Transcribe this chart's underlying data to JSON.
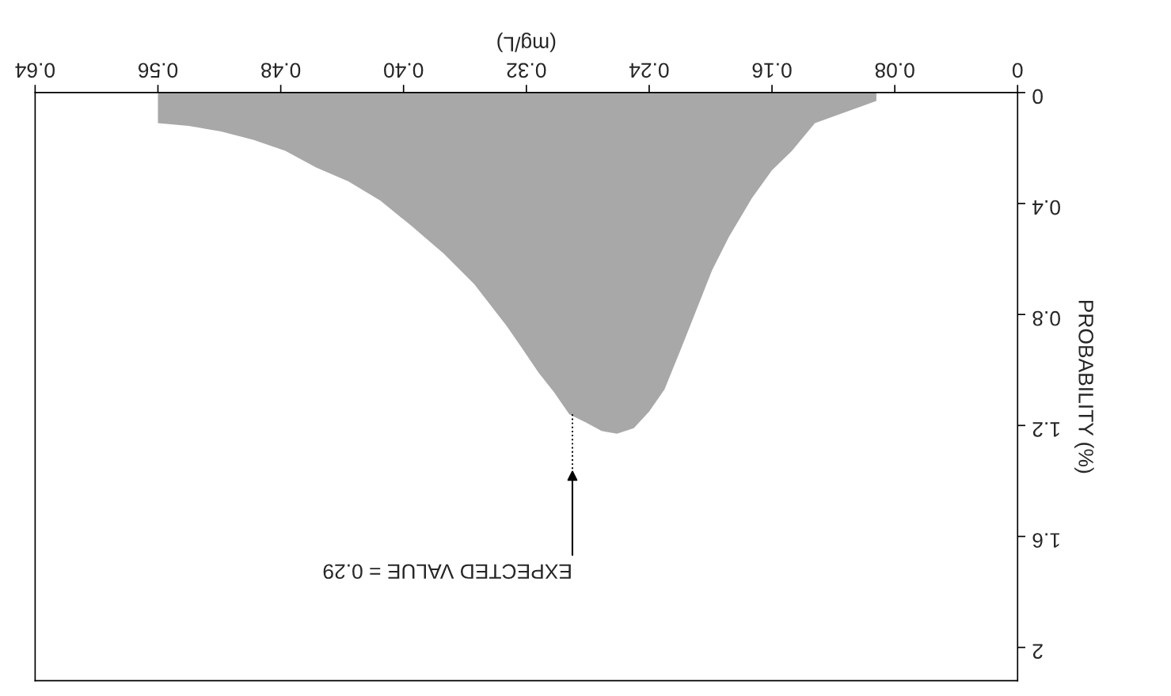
{
  "chart_data": {
    "type": "area",
    "xlabel": "(mg/L)",
    "ylabel": "PROBABILITY (%)",
    "color": "#a8a8a8",
    "x": [
      0.092,
      0.132,
      0.147,
      0.16,
      0.173,
      0.188,
      0.199,
      0.209,
      0.219,
      0.23,
      0.24,
      0.25,
      0.261,
      0.271,
      0.281,
      0.292,
      0.302,
      0.312,
      0.323,
      0.333,
      0.354,
      0.374,
      0.395,
      0.415,
      0.436,
      0.457,
      0.477,
      0.498,
      0.519,
      0.54,
      0.56
    ],
    "values": [
      0.03,
      0.11,
      0.21,
      0.28,
      0.38,
      0.52,
      0.64,
      0.78,
      0.92,
      1.07,
      1.15,
      1.21,
      1.23,
      1.22,
      1.19,
      1.16,
      1.08,
      1.01,
      0.92,
      0.84,
      0.69,
      0.58,
      0.48,
      0.39,
      0.32,
      0.27,
      0.21,
      0.17,
      0.14,
      0.12,
      0.11
    ],
    "xlim": [
      0.64,
      0
    ],
    "ylim": [
      2.12,
      0
    ],
    "xticks": [
      0,
      0.08,
      0.16,
      0.24,
      0.32,
      {
        "value": 0.4,
        "label": "0.40"
      },
      0.48,
      0.56,
      0.64
    ],
    "yticks": [
      0,
      0.4,
      0.8,
      1.2,
      1.6,
      2
    ],
    "series": [
      {
        "type": "line",
        "x": [
          0.29,
          0.29
        ],
        "values": [
          1.16,
          1.36
        ],
        "color": "#000000",
        "line_style": "dotted"
      }
    ],
    "annotations": [
      {
        "text": "EXPECTED VALUE = 0.29",
        "x": 0.29,
        "y": 1.36
      }
    ],
    "grid": false,
    "legend": false
  }
}
